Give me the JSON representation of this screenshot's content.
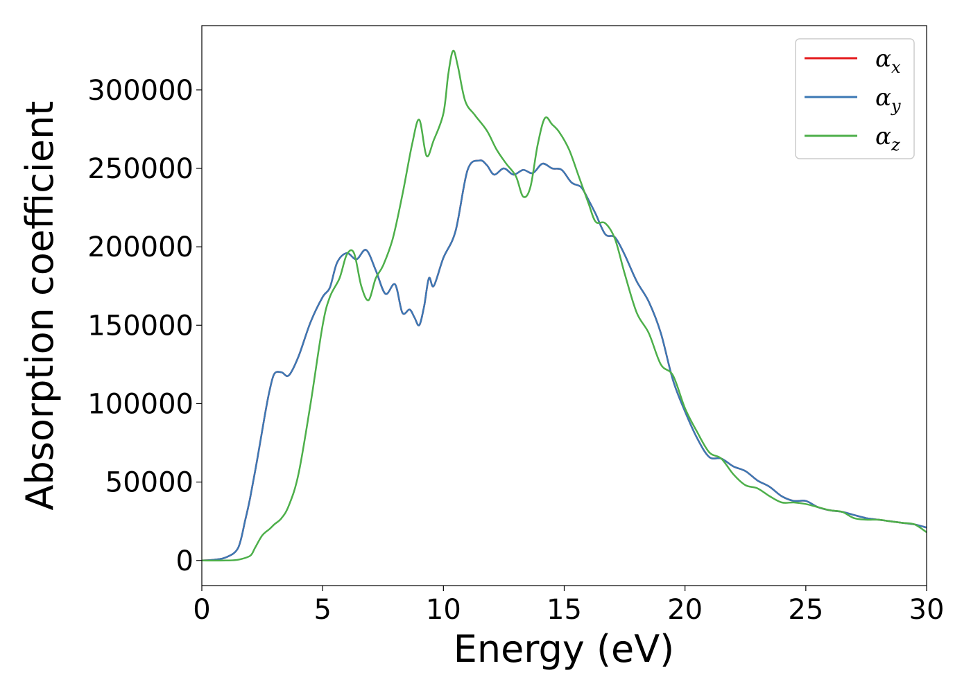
{
  "chart_data": {
    "type": "line",
    "title": "",
    "xlabel": "Energy (eV)",
    "ylabel": "Absorption coefficient",
    "xlim": [
      0,
      30
    ],
    "ylim": [
      -16000,
      341000
    ],
    "xticks": [
      0,
      5,
      10,
      15,
      20,
      25,
      30
    ],
    "xtick_labels": [
      "0",
      "5",
      "10",
      "15",
      "20",
      "25",
      "30"
    ],
    "yticks": [
      0,
      50000,
      100000,
      150000,
      200000,
      250000,
      300000
    ],
    "ytick_labels": [
      "0",
      "50000",
      "100000",
      "150000",
      "200000",
      "250000",
      "300000"
    ],
    "grid": false,
    "legend_position": "top-right",
    "series": [
      {
        "name": "α_x",
        "symbol": "α",
        "subscript": "x",
        "color": "#e41a1c",
        "x": [
          0,
          0.5,
          1,
          1.5,
          1.8,
          2,
          2.3,
          2.6,
          2.8,
          3,
          3.3,
          3.6,
          4,
          4.5,
          5,
          5.3,
          5.6,
          6,
          6.4,
          6.8,
          7.2,
          7.6,
          8,
          8.3,
          8.6,
          8.8,
          9,
          9.2,
          9.4,
          9.6,
          10,
          10.5,
          11,
          11.5,
          11.8,
          12.1,
          12.5,
          12.9,
          13.3,
          13.7,
          14.1,
          14.5,
          14.9,
          15.3,
          15.7,
          16,
          16.3,
          16.7,
          17.1,
          17.5,
          18,
          18.5,
          19,
          19.5,
          20,
          20.5,
          21,
          21.5,
          22,
          22.5,
          23,
          23.5,
          24,
          24.5,
          25,
          25.5,
          26,
          26.5,
          27,
          27.5,
          28,
          28.5,
          29,
          29.5,
          30
        ],
        "values": [
          0,
          500,
          2000,
          8000,
          26000,
          40000,
          65000,
          92000,
          108000,
          119000,
          120000,
          118000,
          130000,
          152000,
          168000,
          174000,
          190000,
          196000,
          192000,
          198000,
          185000,
          170000,
          176000,
          158000,
          160000,
          155000,
          150000,
          162000,
          180000,
          175000,
          193000,
          210000,
          249000,
          255000,
          252000,
          246000,
          250000,
          246000,
          249000,
          247000,
          253000,
          250000,
          249000,
          241000,
          238000,
          230000,
          221000,
          208000,
          206000,
          195000,
          178000,
          165000,
          145000,
          115000,
          95000,
          78000,
          66000,
          65000,
          60000,
          57000,
          51000,
          47000,
          41000,
          38000,
          38000,
          34000,
          32000,
          31000,
          29000,
          27000,
          26000,
          25000,
          24000,
          23000,
          21000
        ]
      },
      {
        "name": "α_y",
        "symbol": "α",
        "subscript": "y",
        "color": "#3b78b4",
        "x": [
          0,
          0.5,
          1,
          1.5,
          1.8,
          2,
          2.3,
          2.6,
          2.8,
          3,
          3.3,
          3.6,
          4,
          4.5,
          5,
          5.3,
          5.6,
          6,
          6.4,
          6.8,
          7.2,
          7.6,
          8,
          8.3,
          8.6,
          8.8,
          9,
          9.2,
          9.4,
          9.6,
          10,
          10.5,
          11,
          11.5,
          11.8,
          12.1,
          12.5,
          12.9,
          13.3,
          13.7,
          14.1,
          14.5,
          14.9,
          15.3,
          15.7,
          16,
          16.3,
          16.7,
          17.1,
          17.5,
          18,
          18.5,
          19,
          19.5,
          20,
          20.5,
          21,
          21.5,
          22,
          22.5,
          23,
          23.5,
          24,
          24.5,
          25,
          25.5,
          26,
          26.5,
          27,
          27.5,
          28,
          28.5,
          29,
          29.5,
          30
        ],
        "values": [
          0,
          500,
          2000,
          8000,
          26000,
          40000,
          65000,
          92000,
          108000,
          119000,
          120000,
          118000,
          130000,
          152000,
          168000,
          174000,
          190000,
          196000,
          192000,
          198000,
          185000,
          170000,
          176000,
          158000,
          160000,
          155000,
          150000,
          162000,
          180000,
          175000,
          193000,
          210000,
          249000,
          255000,
          252000,
          246000,
          250000,
          246000,
          249000,
          247000,
          253000,
          250000,
          249000,
          241000,
          238000,
          230000,
          221000,
          208000,
          206000,
          195000,
          178000,
          165000,
          145000,
          115000,
          95000,
          78000,
          66000,
          65000,
          60000,
          57000,
          51000,
          47000,
          41000,
          38000,
          38000,
          34000,
          32000,
          31000,
          29000,
          27000,
          26000,
          25000,
          24000,
          23000,
          21000
        ]
      },
      {
        "name": "α_z",
        "symbol": "α",
        "subscript": "z",
        "color": "#4daf4a",
        "x": [
          0,
          1,
          1.5,
          2,
          2.2,
          2.5,
          2.8,
          3,
          3.3,
          3.6,
          4,
          4.5,
          5,
          5.3,
          5.7,
          6,
          6.3,
          6.6,
          6.9,
          7.2,
          7.5,
          7.9,
          8.3,
          8.7,
          9,
          9.3,
          9.6,
          10,
          10.2,
          10.4,
          10.6,
          10.9,
          11.3,
          11.8,
          12.2,
          12.6,
          13,
          13.3,
          13.6,
          13.9,
          14.2,
          14.5,
          14.8,
          15.2,
          15.6,
          16,
          16.3,
          16.7,
          17.1,
          17.5,
          18,
          18.5,
          19,
          19.5,
          20,
          20.5,
          21,
          21.5,
          22,
          22.5,
          23,
          23.5,
          24,
          24.5,
          25,
          25.5,
          26,
          26.5,
          27,
          27.5,
          28,
          28.5,
          29,
          29.5,
          30
        ],
        "values": [
          0,
          0,
          500,
          3000,
          8000,
          16000,
          20000,
          23000,
          27000,
          35000,
          55000,
          100000,
          150000,
          168000,
          180000,
          195000,
          196000,
          175000,
          166000,
          180000,
          188000,
          205000,
          233000,
          265000,
          281000,
          258000,
          268000,
          285000,
          310000,
          325000,
          315000,
          293000,
          284000,
          274000,
          262000,
          253000,
          245000,
          232000,
          238000,
          265000,
          282000,
          278000,
          273000,
          262000,
          245000,
          228000,
          216000,
          215000,
          205000,
          183000,
          158000,
          145000,
          125000,
          118000,
          97000,
          82000,
          69000,
          65000,
          55000,
          48000,
          46000,
          41000,
          37000,
          37000,
          36000,
          34000,
          32000,
          31000,
          27000,
          26000,
          26000,
          25000,
          24000,
          23000,
          18000
        ]
      }
    ]
  }
}
